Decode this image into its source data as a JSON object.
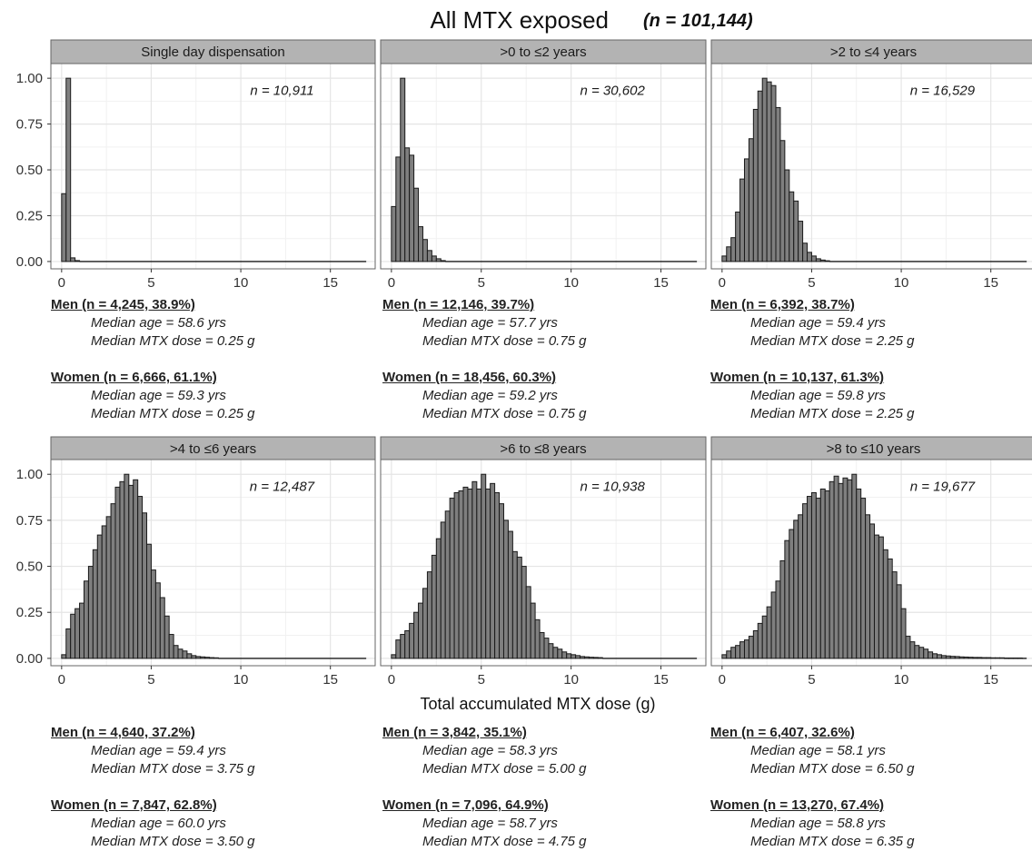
{
  "figure": {
    "title_main": "All MTX exposed",
    "title_n": "(n = 101,144)",
    "xlabel": "Total accumulated MTX dose (g)"
  },
  "chart_data": [
    {
      "type": "bar",
      "facet": "Single day dispensation",
      "n_label": "n = 10,911",
      "bin_width": 0.25,
      "xlim": [
        -0.6,
        17.5
      ],
      "ylim": [
        -0.04,
        1.08
      ],
      "xticks": [
        0,
        5,
        10,
        15
      ],
      "yticks": [
        "0.00",
        "0.25",
        "0.50",
        "0.75",
        "1.00"
      ],
      "x": [
        0,
        0.25,
        0.5,
        0.75
      ],
      "values": [
        0.37,
        1.0,
        0.02,
        0.005
      ]
    },
    {
      "type": "bar",
      "facet": ">0 to ≤2 years",
      "n_label": "n = 30,602",
      "bin_width": 0.25,
      "xlim": [
        -0.6,
        17.5
      ],
      "ylim": [
        -0.04,
        1.08
      ],
      "xticks": [
        0,
        5,
        10,
        15
      ],
      "yticks": [
        "0.00",
        "0.25",
        "0.50",
        "0.75",
        "1.00"
      ],
      "x": [
        0,
        0.25,
        0.5,
        0.75,
        1.0,
        1.25,
        1.5,
        1.75,
        2.0,
        2.25,
        2.5,
        2.75
      ],
      "values": [
        0.3,
        0.57,
        1.0,
        0.62,
        0.58,
        0.4,
        0.19,
        0.12,
        0.06,
        0.03,
        0.015,
        0.005
      ]
    },
    {
      "type": "bar",
      "facet": ">2 to ≤4 years",
      "n_label": "n = 16,529",
      "bin_width": 0.25,
      "xlim": [
        -0.6,
        17.5
      ],
      "ylim": [
        -0.04,
        1.08
      ],
      "xticks": [
        0,
        5,
        10,
        15
      ],
      "yticks": [
        "0.00",
        "0.25",
        "0.50",
        "0.75",
        "1.00"
      ],
      "x": [
        0,
        0.25,
        0.5,
        0.75,
        1.0,
        1.25,
        1.5,
        1.75,
        2.0,
        2.25,
        2.5,
        2.75,
        3.0,
        3.25,
        3.5,
        3.75,
        4.0,
        4.25,
        4.5,
        4.75,
        5.0,
        5.25,
        5.5,
        5.75
      ],
      "values": [
        0.03,
        0.08,
        0.13,
        0.27,
        0.45,
        0.56,
        0.67,
        0.83,
        0.93,
        1.0,
        0.98,
        0.96,
        0.84,
        0.66,
        0.5,
        0.38,
        0.33,
        0.22,
        0.1,
        0.05,
        0.03,
        0.015,
        0.008,
        0.004
      ]
    },
    {
      "type": "bar",
      "facet": ">4 to ≤6 years",
      "n_label": "n = 12,487",
      "bin_width": 0.25,
      "xlim": [
        -0.6,
        17.5
      ],
      "ylim": [
        -0.04,
        1.08
      ],
      "xticks": [
        0,
        5,
        10,
        15
      ],
      "yticks": [
        "0.00",
        "0.25",
        "0.50",
        "0.75",
        "1.00"
      ],
      "x": [
        0,
        0.25,
        0.5,
        0.75,
        1.0,
        1.25,
        1.5,
        1.75,
        2.0,
        2.25,
        2.5,
        2.75,
        3.0,
        3.25,
        3.5,
        3.75,
        4.0,
        4.25,
        4.5,
        4.75,
        5.0,
        5.25,
        5.5,
        5.75,
        6.0,
        6.25,
        6.5,
        6.75,
        7.0,
        7.25,
        7.5,
        7.75,
        8.0,
        8.25,
        8.5
      ],
      "values": [
        0.02,
        0.16,
        0.24,
        0.27,
        0.3,
        0.42,
        0.5,
        0.59,
        0.67,
        0.72,
        0.77,
        0.84,
        0.93,
        0.96,
        1.0,
        0.94,
        0.97,
        0.88,
        0.79,
        0.62,
        0.48,
        0.41,
        0.33,
        0.23,
        0.13,
        0.07,
        0.05,
        0.04,
        0.025,
        0.015,
        0.01,
        0.008,
        0.006,
        0.004,
        0.003
      ]
    },
    {
      "type": "bar",
      "facet": ">6 to ≤8 years",
      "n_label": "n = 10,938",
      "bin_width": 0.25,
      "xlim": [
        -0.6,
        17.5
      ],
      "ylim": [
        -0.04,
        1.08
      ],
      "xticks": [
        0,
        5,
        10,
        15
      ],
      "yticks": [
        "0.00",
        "0.25",
        "0.50",
        "0.75",
        "1.00"
      ],
      "x": [
        0,
        0.25,
        0.5,
        0.75,
        1.0,
        1.25,
        1.5,
        1.75,
        2.0,
        2.25,
        2.5,
        2.75,
        3.0,
        3.25,
        3.5,
        3.75,
        4.0,
        4.25,
        4.5,
        4.75,
        5.0,
        5.25,
        5.5,
        5.75,
        6.0,
        6.25,
        6.5,
        6.75,
        7.0,
        7.25,
        7.5,
        7.75,
        8.0,
        8.25,
        8.5,
        8.75,
        9.0,
        9.25,
        9.5,
        9.75,
        10.0,
        10.25,
        10.5,
        10.75,
        11.0,
        11.25,
        11.5
      ],
      "values": [
        0.02,
        0.1,
        0.13,
        0.15,
        0.19,
        0.25,
        0.3,
        0.38,
        0.47,
        0.56,
        0.65,
        0.74,
        0.8,
        0.87,
        0.9,
        0.91,
        0.93,
        0.92,
        0.96,
        0.92,
        1.0,
        0.92,
        0.95,
        0.9,
        0.84,
        0.75,
        0.69,
        0.58,
        0.55,
        0.5,
        0.39,
        0.3,
        0.21,
        0.14,
        0.11,
        0.08,
        0.06,
        0.05,
        0.035,
        0.025,
        0.02,
        0.015,
        0.01,
        0.008,
        0.006,
        0.005,
        0.004
      ]
    },
    {
      "type": "bar",
      "facet": ">8 to ≤10 years",
      "n_label": "n = 19,677",
      "bin_width": 0.25,
      "xlim": [
        -0.6,
        17.5
      ],
      "ylim": [
        -0.04,
        1.08
      ],
      "xticks": [
        0,
        5,
        10,
        15
      ],
      "yticks": [
        "0.00",
        "0.25",
        "0.50",
        "0.75",
        "1.00"
      ],
      "x": [
        0,
        0.25,
        0.5,
        0.75,
        1.0,
        1.25,
        1.5,
        1.75,
        2.0,
        2.25,
        2.5,
        2.75,
        3.0,
        3.25,
        3.5,
        3.75,
        4.0,
        4.25,
        4.5,
        4.75,
        5.0,
        5.25,
        5.5,
        5.75,
        6.0,
        6.25,
        6.5,
        6.75,
        7.0,
        7.25,
        7.5,
        7.75,
        8.0,
        8.25,
        8.5,
        8.75,
        9.0,
        9.25,
        9.5,
        9.75,
        10.0,
        10.25,
        10.5,
        10.75,
        11.0,
        11.25,
        11.5,
        11.75,
        12.0,
        12.25,
        12.5,
        12.75,
        13.0,
        13.25,
        13.5,
        13.75,
        14.0,
        14.25,
        14.5,
        14.75,
        15.0,
        15.25,
        15.5,
        15.75,
        16.0,
        16.25,
        16.5
      ],
      "values": [
        0.02,
        0.04,
        0.06,
        0.07,
        0.09,
        0.1,
        0.12,
        0.15,
        0.19,
        0.23,
        0.28,
        0.36,
        0.42,
        0.53,
        0.64,
        0.7,
        0.75,
        0.78,
        0.84,
        0.88,
        0.9,
        0.87,
        0.92,
        0.91,
        0.96,
        0.99,
        0.95,
        0.98,
        0.97,
        1.0,
        0.92,
        0.87,
        0.78,
        0.73,
        0.67,
        0.66,
        0.59,
        0.54,
        0.47,
        0.4,
        0.27,
        0.12,
        0.09,
        0.07,
        0.06,
        0.05,
        0.035,
        0.025,
        0.02,
        0.015,
        0.013,
        0.011,
        0.01,
        0.008,
        0.007,
        0.006,
        0.005,
        0.005,
        0.004,
        0.004,
        0.003,
        0.003,
        0.003,
        0.002,
        0.002,
        0.002,
        0.002
      ]
    }
  ],
  "stats": [
    {
      "men": "Men (n = 4,245, 38.9%)",
      "men_age": "Median age = 58.6 yrs",
      "men_dose": "Median MTX dose = 0.25 g",
      "women": "Women (n = 6,666, 61.1%)",
      "women_age": "Median age = 59.3 yrs",
      "women_dose": "Median MTX dose = 0.25 g"
    },
    {
      "men": "Men (n = 12,146, 39.7%)",
      "men_age": "Median age = 57.7 yrs",
      "men_dose": "Median MTX dose = 0.75 g",
      "women": "Women (n = 18,456, 60.3%)",
      "women_age": "Median age = 59.2 yrs",
      "women_dose": "Median MTX dose = 0.75 g"
    },
    {
      "men": "Men (n = 6,392, 38.7%)",
      "men_age": "Median age = 59.4 yrs",
      "men_dose": "Median MTX dose = 2.25 g",
      "women": "Women (n = 10,137, 61.3%)",
      "women_age": "Median age = 59.8 yrs",
      "women_dose": "Median MTX dose = 2.25 g"
    },
    {
      "men": "Men (n = 4,640, 37.2%)",
      "men_age": "Median age = 59.4 yrs",
      "men_dose": "Median MTX dose = 3.75 g",
      "women": "Women (n = 7,847, 62.8%)",
      "women_age": "Median age = 60.0 yrs",
      "women_dose": "Median MTX dose = 3.50 g"
    },
    {
      "men": "Men (n = 3,842, 35.1%)",
      "men_age": "Median age = 58.3 yrs",
      "men_dose": "Median MTX dose = 5.00 g",
      "women": "Women (n = 7,096, 64.9%)",
      "women_age": "Median age = 58.7 yrs",
      "women_dose": "Median MTX dose = 4.75 g"
    },
    {
      "men": "Men (n = 6,407, 32.6%)",
      "men_age": "Median age = 58.1 yrs",
      "men_dose": "Median MTX dose = 6.50 g",
      "women": "Women (n = 13,270, 67.4%)",
      "women_age": "Median age = 58.8 yrs",
      "women_dose": "Median MTX dose = 6.35 g"
    }
  ],
  "colors": {
    "bar_fill": "#7f7f7f",
    "bar_stroke": "#1a1a1a",
    "strip_fill": "#b3b3b3",
    "grid": "#e5e5e5",
    "panel_border": "#666666"
  }
}
